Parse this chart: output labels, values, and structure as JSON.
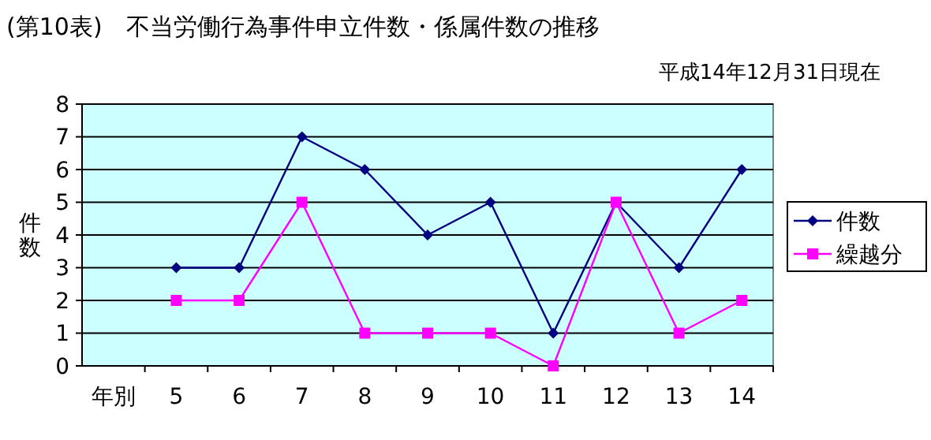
{
  "chart_data": {
    "type": "line",
    "title": "(第10表)　不当労働行為事件申立件数・係属件数の推移",
    "subtitle": "平成14年12月31日現在",
    "ylabel": "件数",
    "categories": [
      "年別",
      "5",
      "6",
      "7",
      "8",
      "9",
      "10",
      "11",
      "12",
      "13",
      "14"
    ],
    "series": [
      {
        "name": "件数",
        "color": "#000080",
        "marker": "diamond",
        "values": [
          null,
          3,
          3,
          7,
          6,
          4,
          5,
          1,
          5,
          3,
          6
        ]
      },
      {
        "name": "繰越分",
        "color": "#ff00ff",
        "marker": "square",
        "values": [
          null,
          2,
          2,
          5,
          1,
          1,
          1,
          0,
          5,
          1,
          2
        ]
      }
    ],
    "ylim": [
      0,
      8
    ],
    "yticks": [
      0,
      1,
      2,
      3,
      4,
      5,
      6,
      7,
      8
    ],
    "grid": "y",
    "legend": "right"
  }
}
